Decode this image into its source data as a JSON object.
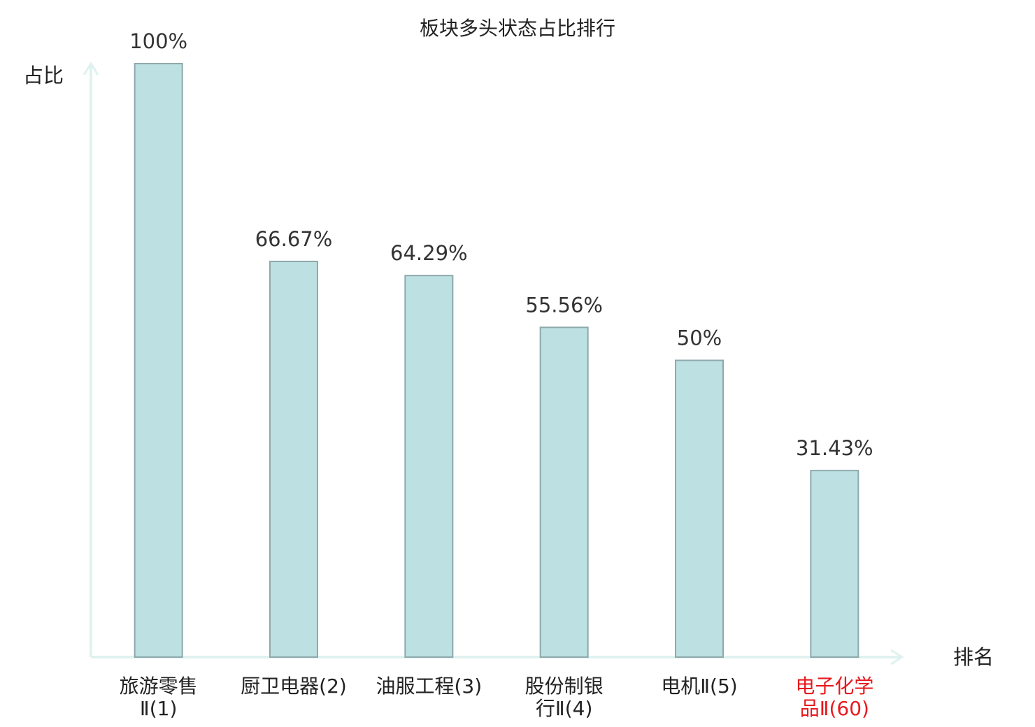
{
  "chart_data": {
    "type": "bar",
    "title": "板块多头状态占比排行",
    "y_label": "占比",
    "x_label": "排名",
    "categories": [
      "旅游零售\nⅡ(1)",
      "厨卫电器(2)",
      "油服工程(3)",
      "股份制银\n行Ⅱ(4)",
      "电机Ⅱ(5)",
      "电子化学\n品Ⅱ(60)"
    ],
    "category_colors": [
      "#222222",
      "#222222",
      "#222222",
      "#222222",
      "#222222",
      "#e8191e"
    ],
    "values": [
      100,
      66.67,
      64.29,
      55.56,
      50,
      31.43
    ],
    "value_labels": [
      "100%",
      "66.67%",
      "64.29%",
      "55.56%",
      "50%",
      "31.43%"
    ],
    "color": "#bde0e3",
    "edge_color": "#8ea9ac",
    "axis_color": "#dff2ef",
    "ylim": [
      0,
      100
    ]
  }
}
